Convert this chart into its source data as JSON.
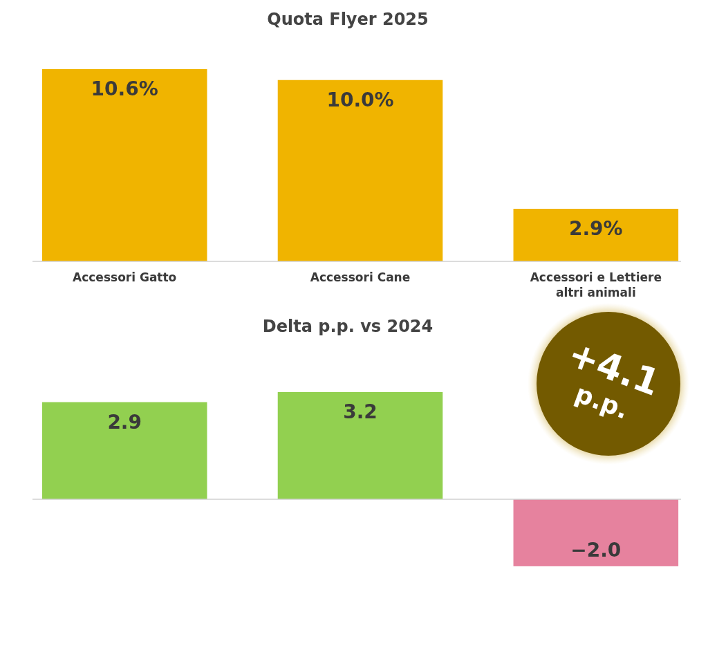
{
  "chart_data": [
    {
      "type": "bar",
      "title": "Quota Flyer 2025",
      "categories": [
        "Accessori Gatto",
        "Accessori Cane",
        "Accessori e Lettiere altri animali"
      ],
      "values": [
        10.6,
        10.0,
        2.9
      ],
      "color": "#f0b400",
      "value_labels": [
        "10.6%",
        "10.0%",
        "2.9%"
      ]
    },
    {
      "type": "bar",
      "title": "Delta p.p. vs 2024",
      "categories": [
        null,
        null,
        null
      ],
      "values": [
        2.9,
        3.2,
        -2.0
      ],
      "colors": [
        "#92d050",
        "#92d050",
        "#e6829e"
      ],
      "value_labels": [
        "2.9",
        "3.2",
        "−2.0"
      ],
      "annotations": [
        "+4.1 p.p."
      ]
    }
  ]
}
